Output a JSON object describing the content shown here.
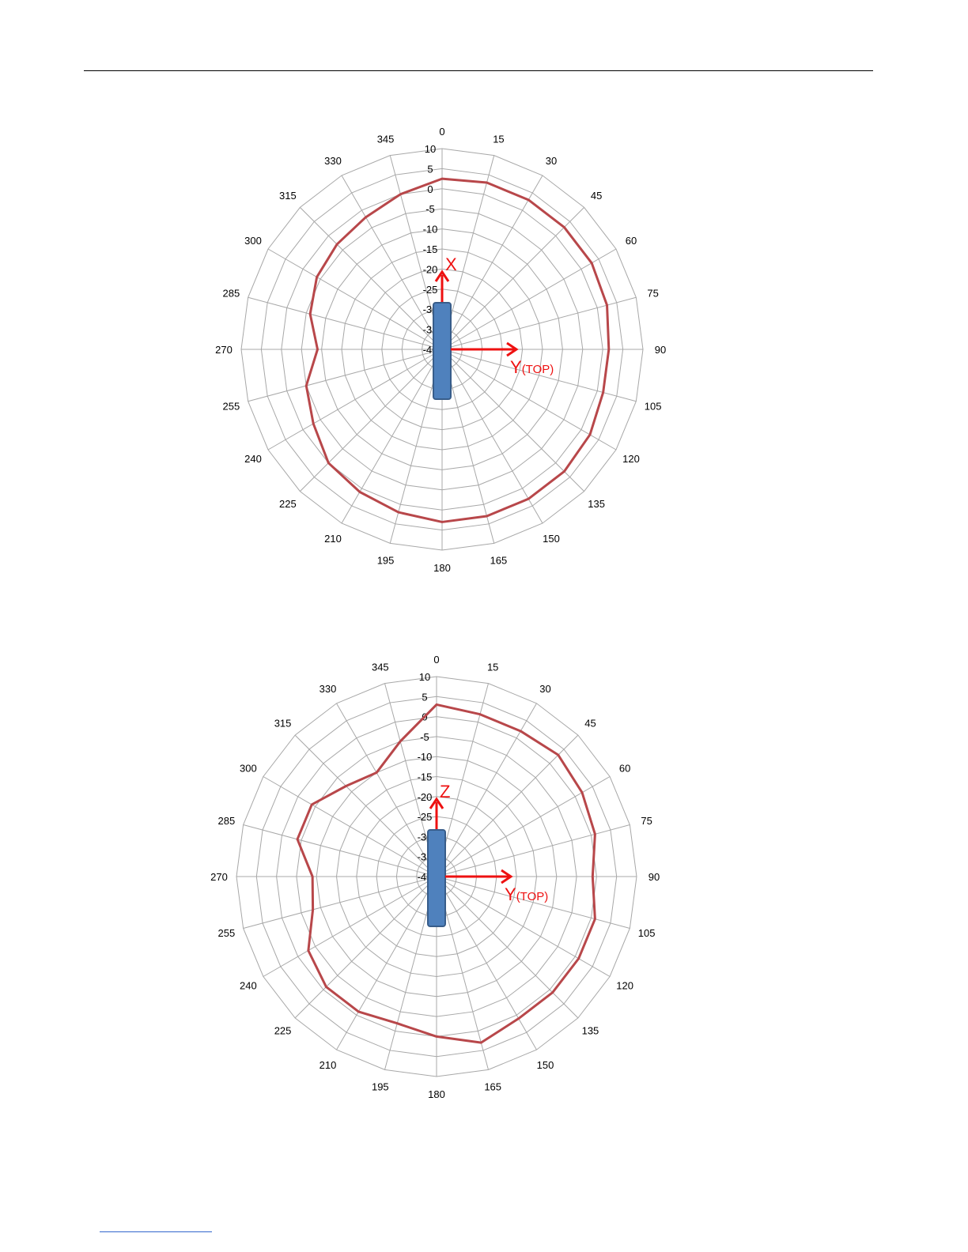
{
  "colors": {
    "grid": "#a8a8a8",
    "trace": "#b8474a",
    "axis_arrow": "#ee1111",
    "device": "#4f81bd",
    "device_border": "#385d8a",
    "header_rule": "#000000",
    "footer_link": "#3366cc"
  },
  "chart_data": [
    {
      "type": "polar-line",
      "title": "",
      "angle_labels": [
        "0",
        "15",
        "30",
        "45",
        "60",
        "75",
        "90",
        "105",
        "120",
        "135",
        "150",
        "165",
        "180",
        "195",
        "210",
        "225",
        "240",
        "255",
        "270",
        "285",
        "300",
        "315",
        "330",
        "345"
      ],
      "radial_labels": [
        "10",
        "5",
        "0",
        "-5",
        "-10",
        "-15",
        "-20",
        "-25",
        "-30",
        "-35",
        "-40"
      ],
      "rlim": [
        -40,
        10
      ],
      "angles_deg": [
        0,
        15,
        30,
        45,
        60,
        75,
        90,
        105,
        120,
        135,
        150,
        165,
        180,
        195,
        210,
        225,
        240,
        255,
        270,
        285,
        300,
        315,
        330,
        345
      ],
      "series": [
        {
          "values": [
            2.5,
            3,
            3,
            3,
            3,
            2.5,
            1.5,
            1.5,
            2.5,
            3,
            3,
            3,
            3,
            2,
            1,
            0,
            -3,
            -5,
            -9,
            -6,
            -4,
            -3,
            -2,
            0
          ]
        }
      ],
      "axis_labels": {
        "vertical": "X",
        "horizontal_main": "Y",
        "horizontal_sub": "(TOP)"
      }
    },
    {
      "type": "polar-line",
      "title": "",
      "angle_labels": [
        "0",
        "15",
        "30",
        "45",
        "60",
        "75",
        "90",
        "105",
        "120",
        "135",
        "150",
        "165",
        "180",
        "195",
        "210",
        "225",
        "240",
        "255",
        "270",
        "285",
        "300",
        "315",
        "330",
        "345"
      ],
      "radial_labels": [
        "10",
        "5",
        "0",
        "-5",
        "-10",
        "-15",
        "-20",
        "-25",
        "-30",
        "-35",
        "-40"
      ],
      "rlim": [
        -40,
        10
      ],
      "angles_deg": [
        0,
        15,
        30,
        45,
        60,
        75,
        90,
        105,
        120,
        135,
        150,
        165,
        180,
        195,
        210,
        225,
        240,
        255,
        270,
        285,
        300,
        315,
        330,
        345
      ],
      "series": [
        {
          "values": [
            3,
            2,
            2,
            3,
            2,
            1,
            -1,
            1,
            1,
            1,
            1,
            3,
            0,
            -2,
            -1,
            -1,
            -3,
            -8,
            -9,
            -4,
            -4,
            -8,
            -10,
            -5
          ]
        }
      ],
      "axis_labels": {
        "vertical": "Z",
        "horizontal_main": "Y",
        "horizontal_sub": "(TOP)"
      }
    }
  ]
}
